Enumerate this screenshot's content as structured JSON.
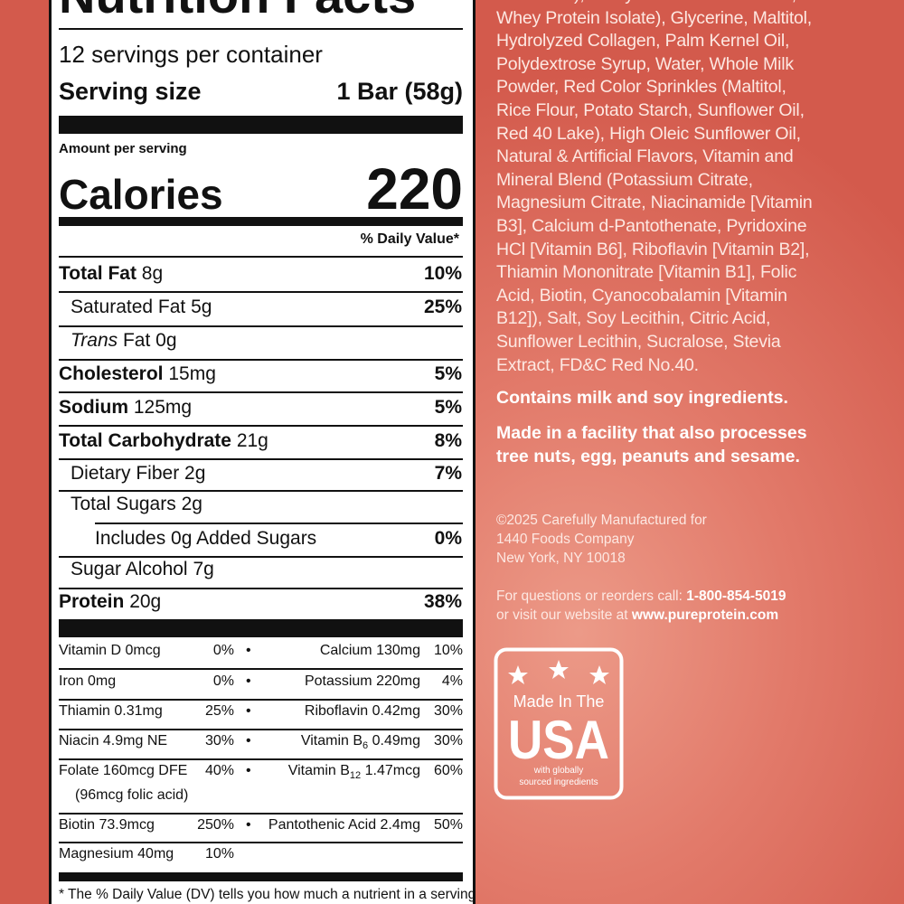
{
  "label": {
    "title": "Nutrition Facts",
    "servings": "12 servings per container",
    "serving_size_label": "Serving size",
    "serving_size": "1 Bar (58g)",
    "amount_per_serving": "Amount per serving",
    "calories_label": "Calories",
    "calories": "220",
    "dv_header": "% Daily Value*",
    "nutrients": [
      {
        "name": "Total Fat",
        "amount": "8g",
        "dv": "10%"
      },
      {
        "name": "Saturated Fat",
        "amount": "5g",
        "dv": "25%"
      },
      {
        "italic": "Trans",
        "name": "Fat",
        "amount": "0g"
      },
      {
        "name": "Cholesterol",
        "amount": "15mg",
        "dv": "5%"
      },
      {
        "name": "Sodium",
        "amount": "125mg",
        "dv": "5%"
      },
      {
        "name": "Total Carbohydrate",
        "amount": "21g",
        "dv": "8%"
      },
      {
        "name": "Dietary Fiber",
        "amount": "2g",
        "dv": "7%"
      },
      {
        "name": "Total Sugars",
        "amount": "2g"
      },
      {
        "name": "Includes 0g Added Sugars",
        "dv": "0%"
      },
      {
        "name": "Sugar Alcohol",
        "amount": "7g"
      },
      {
        "name": "Protein",
        "amount": "20g",
        "dv": "38%"
      }
    ],
    "vitamins": [
      {
        "left": {
          "name": "Vitamin D 0mcg",
          "dv": "0%"
        },
        "right": {
          "name": "Calcium 130mg",
          "dv": "10%"
        }
      },
      {
        "left": {
          "name": "Iron 0mg",
          "dv": "0%"
        },
        "right": {
          "name": "Potassium 220mg",
          "dv": "4%"
        }
      },
      {
        "left": {
          "name": "Thiamin 0.31mg",
          "dv": "25%"
        },
        "right": {
          "name": "Riboflavin 0.42mg",
          "dv": "30%"
        }
      },
      {
        "left": {
          "name": "Niacin 4.9mg NE",
          "dv": "30%"
        },
        "right": {
          "name": "Vitamin B",
          "sub": "6",
          "amount": "0.49mg",
          "dv": "30%"
        }
      },
      {
        "left": {
          "name": "Folate 160mcg DFE",
          "dv": "40%",
          "note": "(96mcg folic acid)"
        },
        "right": {
          "name": "Vitamin B",
          "sub": "12",
          "amount": "1.47mcg",
          "dv": "60%"
        }
      },
      {
        "left": {
          "name": "Biotin 73.9mcg",
          "dv": "250%"
        },
        "right": {
          "name": "Pantothenic Acid 2.4mg",
          "dv": "50%"
        }
      },
      {
        "left": {
          "name": "Magnesium 40mg",
          "dv": "10%"
        }
      }
    ],
    "bullet": "•",
    "footnote": "* The % Daily Value (DV) tells you how much a nutrient in a serving"
  },
  "info": {
    "ingredients": [
      "Caseinate), Whey Protein Concentrate,",
      "Whey Protein Isolate), Glycerine, Maltitol,",
      "Hydrolyzed Collagen, Palm Kernel Oil,",
      "Polydextrose Syrup, Water, Whole Milk",
      "Powder, Red Color Sprinkles (Maltitol,",
      "Rice Flour, Potato Starch, Sunflower Oil,",
      "Red 40 Lake), High Oleic Sunflower Oil,",
      "Natural & Artificial Flavors, Vitamin and",
      "Mineral Blend (Potassium Citrate,",
      "Magnesium Citrate, Niacinamide [Vitamin",
      "B3], Calcium d-Pantothenate, Pyridoxine",
      "HCl [Vitamin B6], Riboflavin [Vitamin B2],",
      "Thiamin Mononitrate [Vitamin B1], Folic",
      "Acid, Biotin, Cyanocobalamin [Vitamin",
      "B12]), Salt, Soy Lecithin, Citric Acid,",
      "Sunflower Lecithin, Sucralose, Stevia",
      "Extract, FD&C Red No.40."
    ],
    "contains": "Contains milk and soy ingredients.",
    "facility": [
      "Made in a facility that also processes",
      "tree nuts, egg, peanuts and sesame."
    ],
    "copyright": [
      "©2025 Carefully Manufactured for",
      "1440 Foods Company",
      "New York, NY 10018"
    ],
    "phone_text": "For questions or reorders call:",
    "phone": "1-800-854-5019",
    "web_text": "or visit our website at",
    "website": "www.pureprotein.com"
  },
  "badge": {
    "line1": "Made In The",
    "line2": "USA",
    "note": [
      "with globally",
      "sourced ingredients"
    ]
  }
}
